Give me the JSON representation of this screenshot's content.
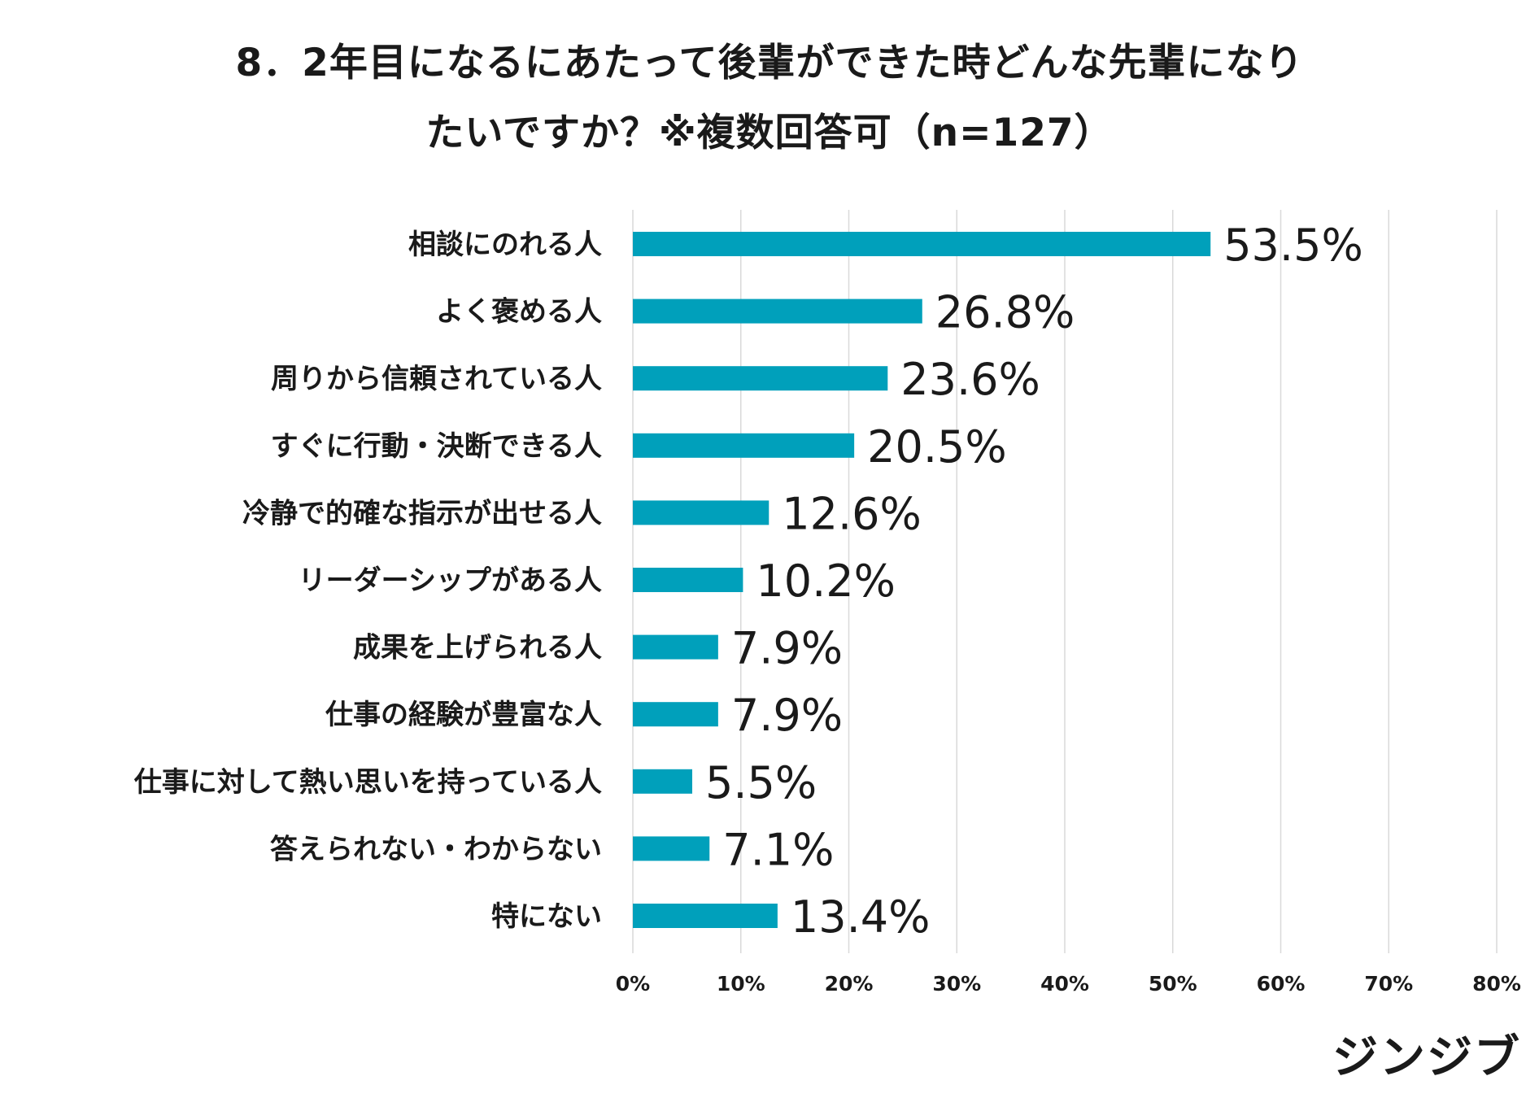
{
  "title": {
    "line1": "8．2年目になるにあたって後輩ができた時どんな先輩になり",
    "line2": "たいですか？※複数回答可（n=127）"
  },
  "brand": "ジンジブ",
  "colors": {
    "bar": "#00A0BB",
    "grid": "#D9D9D9",
    "text": "#1A1A1A"
  },
  "chart_data": {
    "type": "bar",
    "orientation": "horizontal",
    "categories": [
      "相談にのれる人",
      "よく褒める人",
      "周りから信頼されている人",
      "すぐに行動・決断できる人",
      "冷静で的確な指示が出せる人",
      "リーダーシップがある人",
      "成果を上げられる人",
      "仕事の経験が豊富な人",
      "仕事に対して熱い思いを持っている人",
      "答えられない・わからない",
      "特にない"
    ],
    "values": [
      53.5,
      26.8,
      23.6,
      20.5,
      12.6,
      10.2,
      7.9,
      7.9,
      5.5,
      7.1,
      13.4
    ],
    "value_labels": [
      "53.5%",
      "26.8%",
      "23.6%",
      "20.5%",
      "12.6%",
      "10.2%",
      "7.9%",
      "7.9%",
      "5.5%",
      "7.1%",
      "13.4%"
    ],
    "xlim": [
      0,
      80
    ],
    "xticks": [
      0,
      10,
      20,
      30,
      40,
      50,
      60,
      70,
      80
    ],
    "xtick_labels": [
      "0%",
      "10%",
      "20%",
      "30%",
      "40%",
      "50%",
      "60%",
      "70%",
      "80%"
    ],
    "grid": true,
    "legend": "none"
  }
}
